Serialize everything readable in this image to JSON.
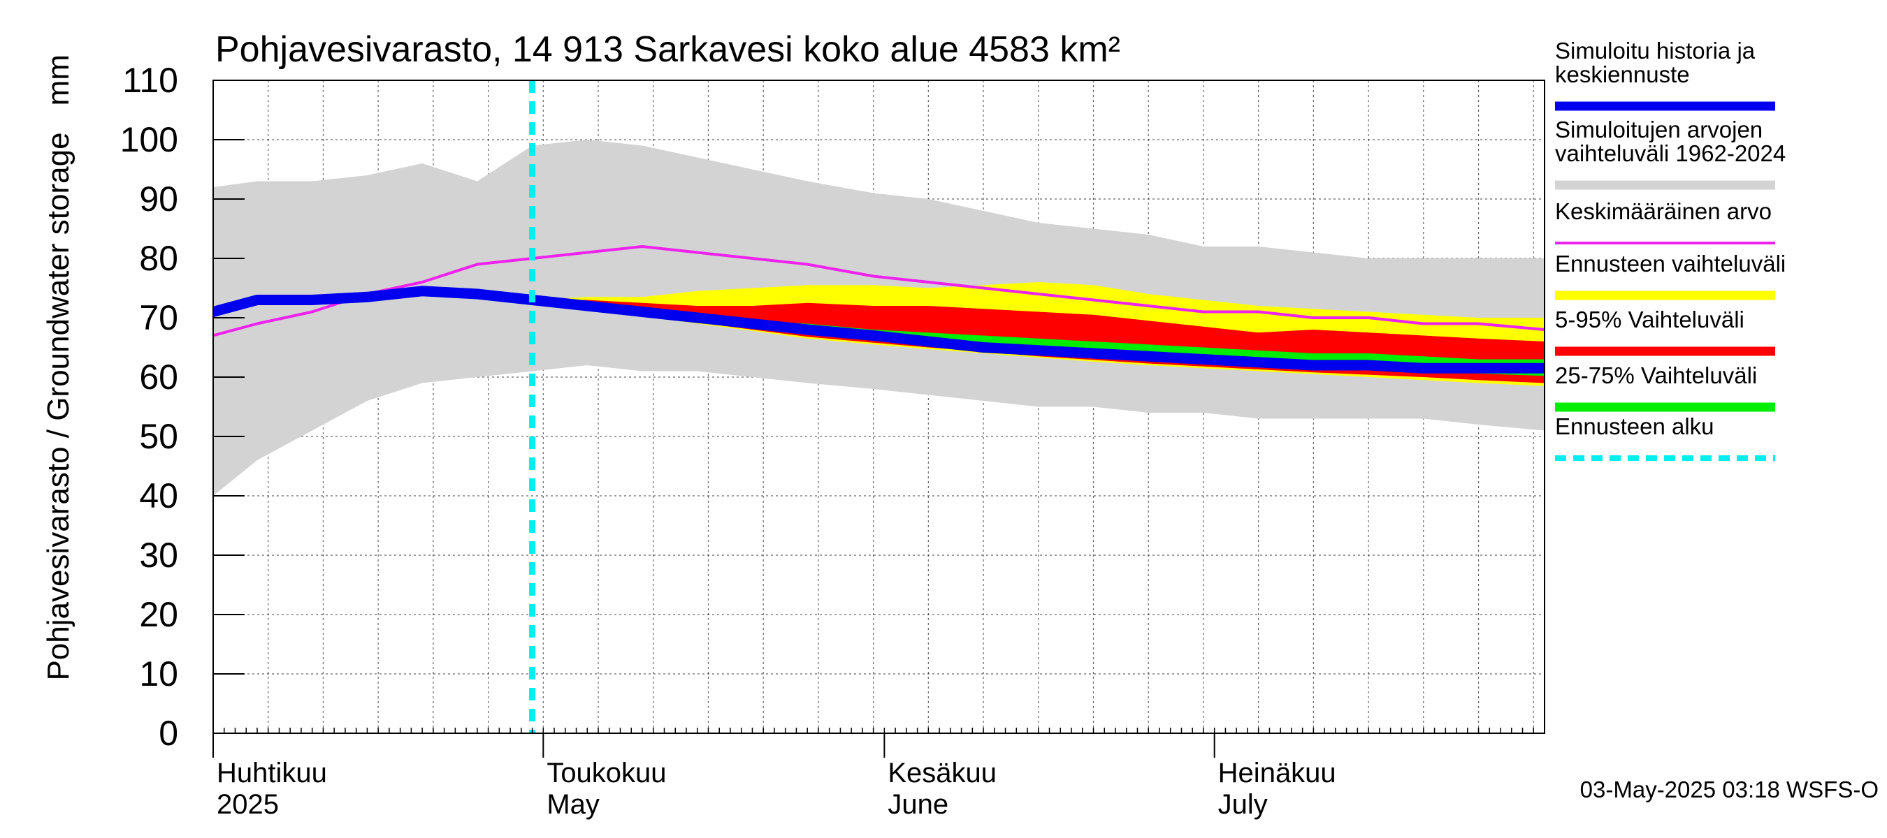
{
  "chart_data": {
    "type": "area",
    "title": "Pohjavesivarasto, 14 913 Sarkavesi koko alue 4583 km²",
    "ylabel": "Pohjavesivarasto / Groundwater storage",
    "yunit": "mm",
    "ylim": [
      0,
      110
    ],
    "yticks": [
      0,
      10,
      20,
      30,
      40,
      50,
      60,
      70,
      80,
      90,
      100,
      110
    ],
    "x_range": [
      "2025-04-01",
      "2025-07-31"
    ],
    "month_labels": [
      {
        "date": "2025-04-01",
        "fi": "Huhtikuu",
        "en": "2025"
      },
      {
        "date": "2025-05-01",
        "fi": "Toukokuu",
        "en": "May"
      },
      {
        "date": "2025-06-01",
        "fi": "Kesäkuu",
        "en": "June"
      },
      {
        "date": "2025-07-01",
        "fi": "Heinäkuu",
        "en": "July"
      }
    ],
    "grid": true,
    "legend_position": "right",
    "forecast_start": "2025-04-30",
    "footer": "03-May-2025 03:18 WSFS-O",
    "legend": [
      {
        "key": "sim",
        "label_lines": [
          "Simuloitu historia ja",
          "keskiennuste"
        ],
        "color": "#0000ee",
        "style": "thick"
      },
      {
        "key": "range",
        "label_lines": [
          "Simuloitujen arvojen",
          "vaihteluväli 1962-2024"
        ],
        "color": "#d3d3d3",
        "style": "thick"
      },
      {
        "key": "mean",
        "label_lines": [
          "Keskimääräinen arvo"
        ],
        "color": "#ee22ee",
        "style": "thin"
      },
      {
        "key": "fc_range",
        "label_lines": [
          "Ennusteen vaihteluväli"
        ],
        "color": "#ffff00",
        "style": "thick"
      },
      {
        "key": "p5_95",
        "label_lines": [
          "5-95% Vaihteluväli"
        ],
        "color": "#ff0000",
        "style": "thick"
      },
      {
        "key": "p25_75",
        "label_lines": [
          "25-75% Vaihteluväli"
        ],
        "color": "#00ee00",
        "style": "thick"
      },
      {
        "key": "fc_start",
        "label_lines": [
          "Ennusteen alku"
        ],
        "color": "#00eeee",
        "style": "dashed"
      }
    ],
    "series": {
      "hist_range": {
        "x": [
          "2025-04-01",
          "2025-04-05",
          "2025-04-10",
          "2025-04-15",
          "2025-04-20",
          "2025-04-25",
          "2025-04-30",
          "2025-05-05",
          "2025-05-10",
          "2025-05-15",
          "2025-05-20",
          "2025-05-25",
          "2025-05-31",
          "2025-06-05",
          "2025-06-10",
          "2025-06-15",
          "2025-06-20",
          "2025-06-25",
          "2025-06-30",
          "2025-07-05",
          "2025-07-10",
          "2025-07-15",
          "2025-07-20",
          "2025-07-25",
          "2025-07-31"
        ],
        "upper": [
          92,
          93,
          93,
          94,
          96,
          93,
          99,
          100,
          99,
          97,
          95,
          93,
          91,
          90,
          88,
          86,
          85,
          84,
          82,
          82,
          81,
          80,
          80,
          80,
          80
        ],
        "lower": [
          40,
          46,
          51,
          56,
          59,
          60,
          61,
          62,
          61,
          61,
          60,
          59,
          58,
          57,
          56,
          55,
          55,
          54,
          54,
          53,
          53,
          53,
          53,
          52,
          51
        ]
      },
      "mean": {
        "x": [
          "2025-04-01",
          "2025-04-05",
          "2025-04-10",
          "2025-04-15",
          "2025-04-20",
          "2025-04-25",
          "2025-04-30",
          "2025-05-05",
          "2025-05-10",
          "2025-05-15",
          "2025-05-20",
          "2025-05-25",
          "2025-05-31",
          "2025-06-05",
          "2025-06-10",
          "2025-06-15",
          "2025-06-20",
          "2025-06-25",
          "2025-06-30",
          "2025-07-05",
          "2025-07-10",
          "2025-07-15",
          "2025-07-20",
          "2025-07-25",
          "2025-07-31"
        ],
        "y": [
          67,
          69,
          71,
          74,
          76,
          79,
          80,
          81,
          82,
          81,
          80,
          79,
          77,
          76,
          75,
          74,
          73,
          72,
          71,
          71,
          70,
          70,
          69,
          69,
          68
        ]
      },
      "forecast": {
        "x": [
          "2025-04-30",
          "2025-05-05",
          "2025-05-10",
          "2025-05-15",
          "2025-05-20",
          "2025-05-25",
          "2025-05-31",
          "2025-06-05",
          "2025-06-10",
          "2025-06-15",
          "2025-06-20",
          "2025-06-25",
          "2025-06-30",
          "2025-07-05",
          "2025-07-10",
          "2025-07-15",
          "2025-07-20",
          "2025-07-25",
          "2025-07-31"
        ],
        "max": [
          73,
          73.5,
          73.5,
          74.5,
          75,
          75.5,
          75.5,
          75,
          75.5,
          76,
          75.5,
          74,
          73,
          72,
          71.5,
          71,
          70.5,
          70,
          70
        ],
        "p95": [
          73,
          73,
          72.5,
          72,
          72,
          72.5,
          72,
          72,
          71.5,
          71,
          70.5,
          69.5,
          68.5,
          67.5,
          68,
          67.5,
          67,
          66.5,
          66
        ],
        "p75": [
          73,
          72.3,
          71.5,
          70.5,
          69.5,
          69,
          68,
          67.5,
          67,
          66.5,
          66,
          65.5,
          65,
          64.5,
          64,
          64,
          63.5,
          63,
          63
        ],
        "p25": [
          73,
          72,
          71,
          70,
          69,
          67.8,
          66.8,
          66,
          65.2,
          64.5,
          63.8,
          63.2,
          62.7,
          62.2,
          61.8,
          61.3,
          61,
          60.6,
          60.2
        ],
        "p5": [
          73,
          71.8,
          70.5,
          69.2,
          68,
          66.8,
          65.8,
          65,
          64.3,
          63.5,
          62.9,
          62.3,
          61.8,
          61.3,
          60.8,
          60.4,
          60,
          59.5,
          59
        ],
        "min": [
          73,
          71.6,
          70.3,
          69,
          67.8,
          66.5,
          65.5,
          64.7,
          64,
          63.3,
          62.6,
          62,
          61.5,
          61,
          60.5,
          60,
          59.5,
          59,
          58.5
        ]
      },
      "sim": {
        "x": [
          "2025-04-01",
          "2025-04-05",
          "2025-04-10",
          "2025-04-15",
          "2025-04-20",
          "2025-04-25",
          "2025-04-30",
          "2025-05-05",
          "2025-05-10",
          "2025-05-15",
          "2025-05-20",
          "2025-05-25",
          "2025-05-31",
          "2025-06-05",
          "2025-06-10",
          "2025-06-15",
          "2025-06-20",
          "2025-06-25",
          "2025-06-30",
          "2025-07-05",
          "2025-07-10",
          "2025-07-15",
          "2025-07-20",
          "2025-07-25",
          "2025-07-31"
        ],
        "y": [
          71,
          73,
          73,
          73.5,
          74.5,
          74,
          73,
          72,
          71,
          70,
          69,
          68,
          67,
          66,
          65,
          64.5,
          64,
          63.5,
          63,
          62.5,
          62,
          62,
          61.5,
          61.5,
          61.5
        ]
      }
    }
  }
}
